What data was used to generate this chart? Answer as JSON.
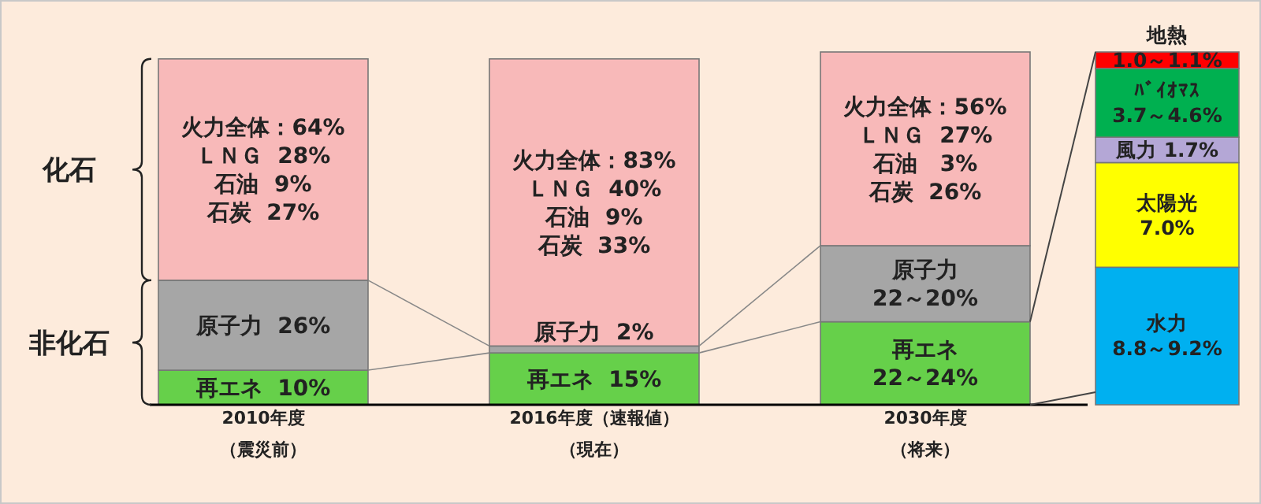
{
  "chart_data": [
    {
      "type": "bar",
      "stacked": true,
      "categories": [
        "2010年度（震災前）",
        "2016年度（速報値）（現在）",
        "2030年度（将来）"
      ],
      "series": [
        {
          "color": "#66d04a",
          "values": [
            10,
            15,
            24
          ],
          "value_labels": [
            "再エネ  10%",
            "再エネ  15%",
            "再エネ\n22～24%"
          ]
        },
        {
          "color": "#a6a6a6",
          "values": [
            26,
            2,
            22
          ],
          "value_labels": [
            "原子力  26%",
            "原子力  2%",
            "原子力\n22～20%"
          ]
        },
        {
          "color": "#f8b9b9",
          "values": [
            64,
            83,
            56
          ],
          "value_labels": [
            "火力全体：64%\nＬＮＧ  28%\n石油  9%\n石炭  27%",
            "火力全体：83%\nＬＮＧ  40%\n石油  9%\n石炭  33%",
            "火力全体：56%\nＬＮＧ  27%\n石油   3%\n石炭  26%"
          ]
        }
      ],
      "annotations": [
        "化石",
        "非化石"
      ]
    },
    {
      "type": "bar",
      "stacked": true,
      "categories": [
        null
      ],
      "series": [
        {
          "color": "#00b0f0",
          "values": [
            9.2
          ],
          "value_labels": [
            "水力\n8.8～9.2%"
          ]
        },
        {
          "color": "#ffff00",
          "values": [
            7.0
          ],
          "value_labels": [
            "太陽光\n7.0%"
          ]
        },
        {
          "color": "#b4a7d6",
          "values": [
            1.7
          ],
          "value_labels": [
            "風力 1.7%"
          ]
        },
        {
          "color": "#00b050",
          "values": [
            4.6
          ],
          "value_labels": [
            "ﾊﾞｲｵﾏｽ\n3.7～4.6%"
          ]
        },
        {
          "color": "#ff0000",
          "values": [
            1.1
          ],
          "value_labels": [
            "地熱\n1.0～1.1%"
          ]
        }
      ]
    }
  ]
}
